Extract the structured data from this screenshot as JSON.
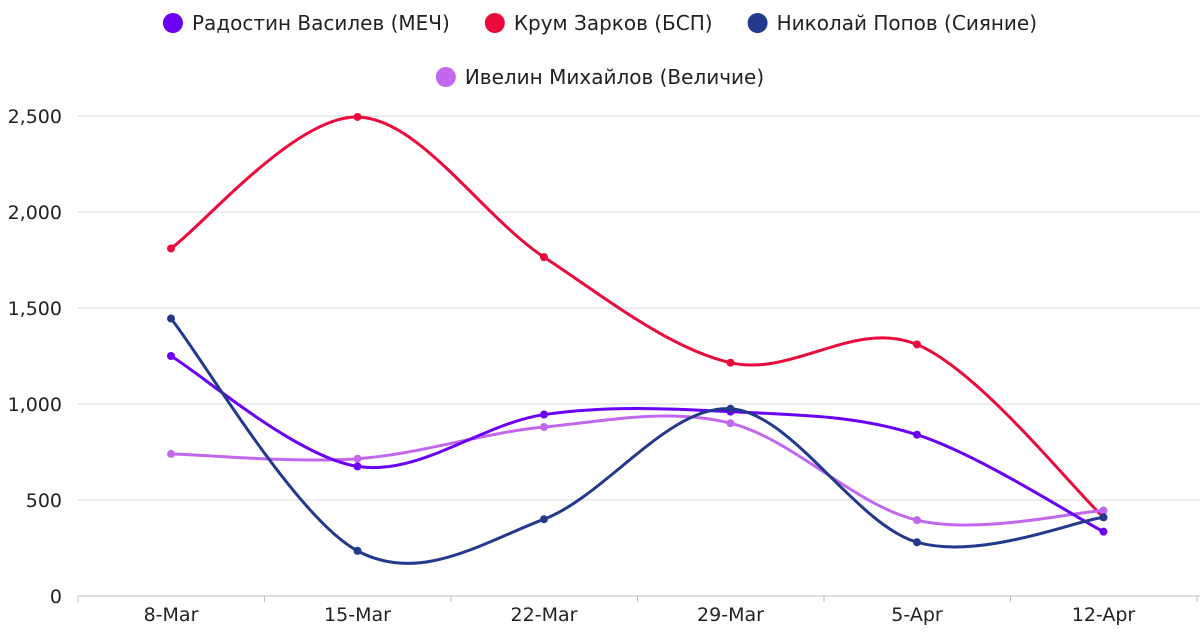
{
  "chart_data": {
    "type": "line",
    "title": "",
    "xlabel": "",
    "ylabel": "",
    "categories": [
      "8-Mar",
      "15-Mar",
      "22-Mar",
      "29-Mar",
      "5-Apr",
      "12-Apr"
    ],
    "ylim": [
      0,
      2500
    ],
    "yticks": [
      0,
      500,
      1000,
      1500,
      2000,
      2500
    ],
    "ytick_labels": [
      "0",
      "500",
      "1,000",
      "1,500",
      "2,000",
      "2,500"
    ],
    "grid": "horizontal",
    "legend_position": "top",
    "smooth": true,
    "series": [
      {
        "name": "Радостин Василев (МЕЧ)",
        "color": "#6a00f4",
        "values": [
          1250,
          675,
          945,
          960,
          840,
          335
        ]
      },
      {
        "name": "Крум Зарков (БСП)",
        "color": "#ea0a3c",
        "values": [
          1810,
          2495,
          1765,
          1215,
          1310,
          410
        ]
      },
      {
        "name": "Николай Попов (Сияние)",
        "color": "#233a8c",
        "values": [
          1445,
          235,
          400,
          975,
          280,
          410
        ]
      },
      {
        "name": "Ивелин Михайлов (Величие)",
        "color": "#c268ee",
        "values": [
          740,
          715,
          880,
          900,
          395,
          445
        ]
      }
    ]
  }
}
